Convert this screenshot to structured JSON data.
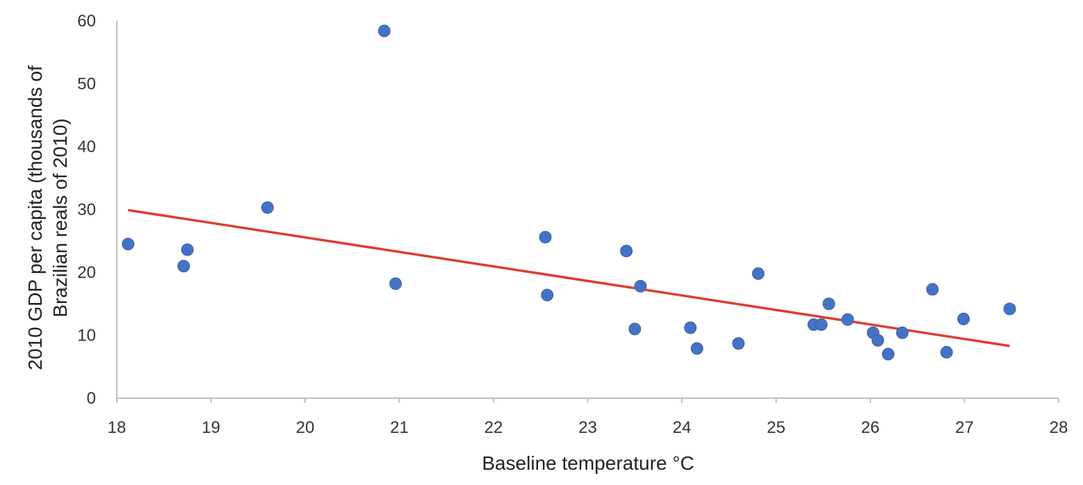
{
  "chart_data": {
    "type": "scatter",
    "xlabel": "Baseline temperature °C",
    "ylabel": [
      "2010  GDP per capita (thousands of",
      "Brazilian reals of 2010)"
    ],
    "xlim": [
      18,
      28
    ],
    "ylim": [
      0,
      60
    ],
    "x_ticks": [
      18,
      19,
      20,
      21,
      22,
      23,
      24,
      25,
      26,
      27,
      28
    ],
    "y_ticks": [
      0,
      10,
      20,
      30,
      40,
      50,
      60
    ],
    "grid": false,
    "colors": {
      "points": "#4472C4",
      "trendline": "#E03C31",
      "axis": "#bfbfbf"
    },
    "points": [
      {
        "x": 18.12,
        "y": 24.5
      },
      {
        "x": 18.71,
        "y": 21.0
      },
      {
        "x": 18.75,
        "y": 23.6
      },
      {
        "x": 19.6,
        "y": 30.3
      },
      {
        "x": 20.84,
        "y": 58.4
      },
      {
        "x": 20.96,
        "y": 18.2
      },
      {
        "x": 22.55,
        "y": 25.6
      },
      {
        "x": 22.57,
        "y": 16.4
      },
      {
        "x": 23.41,
        "y": 23.4
      },
      {
        "x": 23.5,
        "y": 11.0
      },
      {
        "x": 23.56,
        "y": 17.8
      },
      {
        "x": 24.09,
        "y": 11.2
      },
      {
        "x": 24.16,
        "y": 7.9
      },
      {
        "x": 24.6,
        "y": 8.7
      },
      {
        "x": 24.81,
        "y": 19.8
      },
      {
        "x": 25.4,
        "y": 11.7
      },
      {
        "x": 25.48,
        "y": 11.7
      },
      {
        "x": 25.56,
        "y": 15.0
      },
      {
        "x": 25.76,
        "y": 12.5
      },
      {
        "x": 26.03,
        "y": 10.4
      },
      {
        "x": 26.08,
        "y": 9.2
      },
      {
        "x": 26.19,
        "y": 7.0
      },
      {
        "x": 26.34,
        "y": 10.4
      },
      {
        "x": 26.66,
        "y": 17.3
      },
      {
        "x": 26.81,
        "y": 7.3
      },
      {
        "x": 26.99,
        "y": 12.6
      },
      {
        "x": 27.48,
        "y": 14.2
      }
    ],
    "trendline": {
      "x": [
        18.12,
        27.48
      ],
      "y": [
        29.9,
        8.3
      ]
    }
  }
}
